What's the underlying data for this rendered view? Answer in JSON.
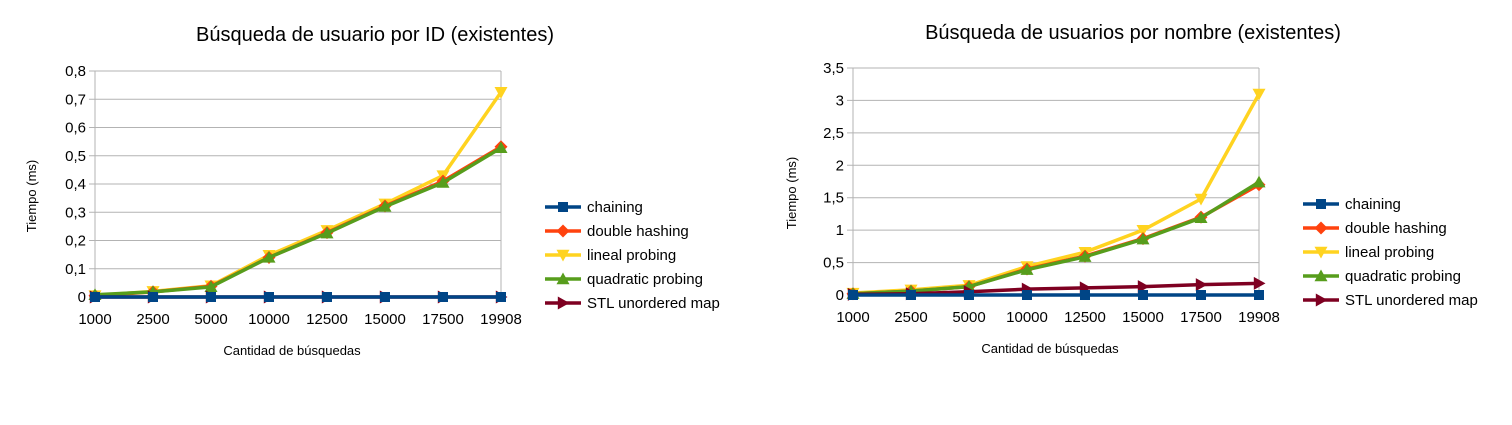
{
  "chart_data": [
    {
      "type": "line",
      "title": "Búsqueda de usuario por ID (existentes)",
      "xlabel": "Cantidad de búsquedas",
      "ylabel": "Tiempo (ms)",
      "categories": [
        "1000",
        "2500",
        "5000",
        "10000",
        "12500",
        "15000",
        "17500",
        "19908"
      ],
      "yticks": [
        "0",
        "0,1",
        "0,2",
        "0,3",
        "0,4",
        "0,5",
        "0,6",
        "0,7",
        "0,8"
      ],
      "ylim": [
        0,
        0.8
      ],
      "grid": true,
      "legend": "right",
      "series": [
        {
          "name": "chaining",
          "color": "#004586",
          "marker": "square",
          "values": [
            0,
            0,
            0,
            0,
            0,
            0,
            0,
            0
          ]
        },
        {
          "name": "double hashing",
          "color": "#ff420e",
          "marker": "diamond",
          "values": [
            0.005,
            0.018,
            0.038,
            0.14,
            0.228,
            0.322,
            0.41,
            0.532
          ]
        },
        {
          "name": "lineal probing",
          "color": "#ffd320",
          "marker": "triangle-down",
          "values": [
            0.005,
            0.02,
            0.04,
            0.148,
            0.236,
            0.33,
            0.43,
            0.725
          ]
        },
        {
          "name": "quadratic probing",
          "color": "#579d1c",
          "marker": "triangle-up",
          "values": [
            0.008,
            0.018,
            0.036,
            0.14,
            0.226,
            0.32,
            0.405,
            0.528
          ]
        },
        {
          "name": "STL unordered map",
          "color": "#7e0021",
          "marker": "triangle-right",
          "values": [
            0,
            0,
            0,
            0,
            0,
            0,
            0,
            0
          ]
        }
      ]
    },
    {
      "type": "line",
      "title": "Búsqueda de usuarios por nombre (existentes)",
      "xlabel": "Cantidad de búsquedas",
      "ylabel": "Tiempo (ms)",
      "categories": [
        "1000",
        "2500",
        "5000",
        "10000",
        "12500",
        "15000",
        "17500",
        "19908"
      ],
      "yticks": [
        "0",
        "0,5",
        "1",
        "1,5",
        "2",
        "2,5",
        "3",
        "3,5"
      ],
      "ylim": [
        0,
        3.5
      ],
      "grid": true,
      "legend": "right",
      "series": [
        {
          "name": "chaining",
          "color": "#004586",
          "marker": "square",
          "values": [
            0,
            0,
            0,
            0,
            0,
            0,
            0,
            0
          ]
        },
        {
          "name": "double hashing",
          "color": "#ff420e",
          "marker": "diamond",
          "values": [
            0.02,
            0.06,
            0.13,
            0.4,
            0.6,
            0.87,
            1.2,
            1.7
          ]
        },
        {
          "name": "lineal probing",
          "color": "#ffd320",
          "marker": "triangle-down",
          "values": [
            0.03,
            0.08,
            0.15,
            0.44,
            0.66,
            1.0,
            1.48,
            3.1
          ]
        },
        {
          "name": "quadratic probing",
          "color": "#579d1c",
          "marker": "triangle-up",
          "values": [
            0.02,
            0.06,
            0.13,
            0.39,
            0.59,
            0.86,
            1.19,
            1.74
          ]
        },
        {
          "name": "STL unordered map",
          "color": "#7e0021",
          "marker": "triangle-right",
          "values": [
            0.01,
            0.02,
            0.05,
            0.09,
            0.11,
            0.13,
            0.16,
            0.18
          ]
        }
      ]
    }
  ]
}
